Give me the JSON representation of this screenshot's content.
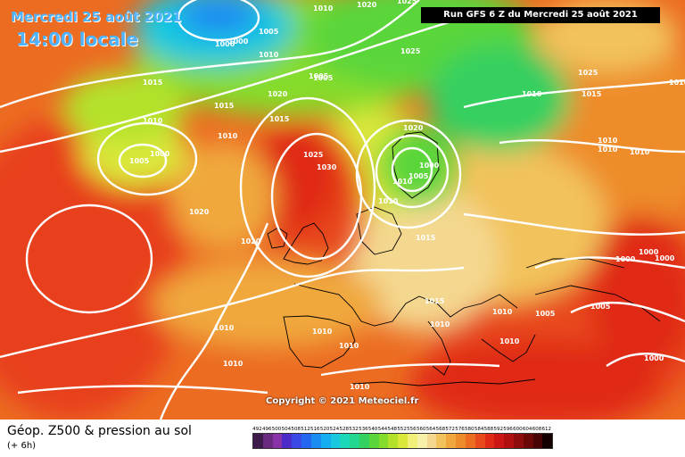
{
  "header": {
    "date": "Mercredi 25 août 2021",
    "time": "14:00 locale"
  },
  "run_banner": "Run GFS 6 Z du Mercredi 25 août 2021",
  "copyright": "Copyright © 2021 Meteociel.fr",
  "footer": {
    "product_title": "Géop. Z500 & pression au sol",
    "product_offset": "(+ 6h)"
  },
  "legend": {
    "values": [
      "492",
      "496",
      "500",
      "504",
      "508",
      "512",
      "516",
      "520",
      "524",
      "528",
      "532",
      "536",
      "540",
      "544",
      "548",
      "552",
      "556",
      "560",
      "564",
      "568",
      "572",
      "576",
      "580",
      "584",
      "588",
      "592",
      "596",
      "600",
      "604",
      "608",
      "612"
    ],
    "colors": [
      "#3c1a4a",
      "#6a2a80",
      "#8a33a8",
      "#4b2cc8",
      "#3a48e6",
      "#2466f0",
      "#1b8cf2",
      "#14aef0",
      "#18c8e0",
      "#1ad8b8",
      "#22d890",
      "#34d060",
      "#5ad63a",
      "#86dc2c",
      "#b4e22c",
      "#dae83a",
      "#f2f078",
      "#f6f0a8",
      "#f4d890",
      "#f2c25c",
      "#f0a83e",
      "#ee8c2c",
      "#ec6c22",
      "#e84a1c",
      "#e02a18",
      "#cc1814",
      "#b01010",
      "#8e0c0c",
      "#6a0808",
      "#480404",
      "#140000"
    ]
  },
  "map": {
    "pressure_labels": [
      {
        "id": "p1",
        "text": "1000"
      },
      {
        "id": "p2",
        "text": "1000"
      },
      {
        "id": "p3",
        "text": "1005"
      },
      {
        "id": "p4",
        "text": "1010"
      },
      {
        "id": "p5",
        "text": "1025"
      },
      {
        "id": "p6",
        "text": "1015"
      },
      {
        "id": "p7",
        "text": "1020"
      },
      {
        "id": "p8",
        "text": "1010"
      },
      {
        "id": "p9",
        "text": "1005"
      },
      {
        "id": "p10",
        "text": "1000"
      },
      {
        "id": "p11",
        "text": "1010"
      },
      {
        "id": "p12",
        "text": "1020"
      },
      {
        "id": "p13",
        "text": "1025"
      },
      {
        "id": "p14",
        "text": "1020"
      },
      {
        "id": "p15",
        "text": "1020"
      },
      {
        "id": "p16",
        "text": "1015"
      },
      {
        "id": "p17",
        "text": "1010"
      },
      {
        "id": "p18",
        "text": "1005"
      },
      {
        "id": "p19",
        "text": "1025"
      },
      {
        "id": "p20",
        "text": "1030"
      },
      {
        "id": "p21",
        "text": "1020"
      },
      {
        "id": "p22",
        "text": "1000"
      },
      {
        "id": "p23",
        "text": "1005"
      },
      {
        "id": "p24",
        "text": "1010"
      },
      {
        "id": "p25",
        "text": "1010"
      },
      {
        "id": "p26",
        "text": "1015"
      },
      {
        "id": "p27",
        "text": "1025"
      },
      {
        "id": "p28",
        "text": "1015"
      },
      {
        "id": "p29",
        "text": "1010"
      },
      {
        "id": "p30",
        "text": "1015"
      },
      {
        "id": "p31",
        "text": "1010"
      },
      {
        "id": "p32",
        "text": "1010"
      },
      {
        "id": "p33",
        "text": "1010"
      },
      {
        "id": "p34",
        "text": "1010"
      },
      {
        "id": "p35",
        "text": "1010"
      },
      {
        "id": "p36",
        "text": "1010"
      },
      {
        "id": "p37",
        "text": "1010"
      },
      {
        "id": "p38",
        "text": "1005"
      },
      {
        "id": "p39",
        "text": "1005"
      },
      {
        "id": "p40",
        "text": "1000"
      },
      {
        "id": "p41",
        "text": "1000"
      },
      {
        "id": "p42",
        "text": "1000"
      },
      {
        "id": "p43",
        "text": "1010"
      },
      {
        "id": "p44",
        "text": "1010"
      },
      {
        "id": "p45",
        "text": "1015"
      },
      {
        "id": "p46",
        "text": "1005"
      },
      {
        "id": "p47",
        "text": "1010"
      },
      {
        "id": "p48",
        "text": "1010"
      },
      {
        "id": "p49",
        "text": "1010"
      },
      {
        "id": "p50",
        "text": "1000"
      }
    ]
  }
}
